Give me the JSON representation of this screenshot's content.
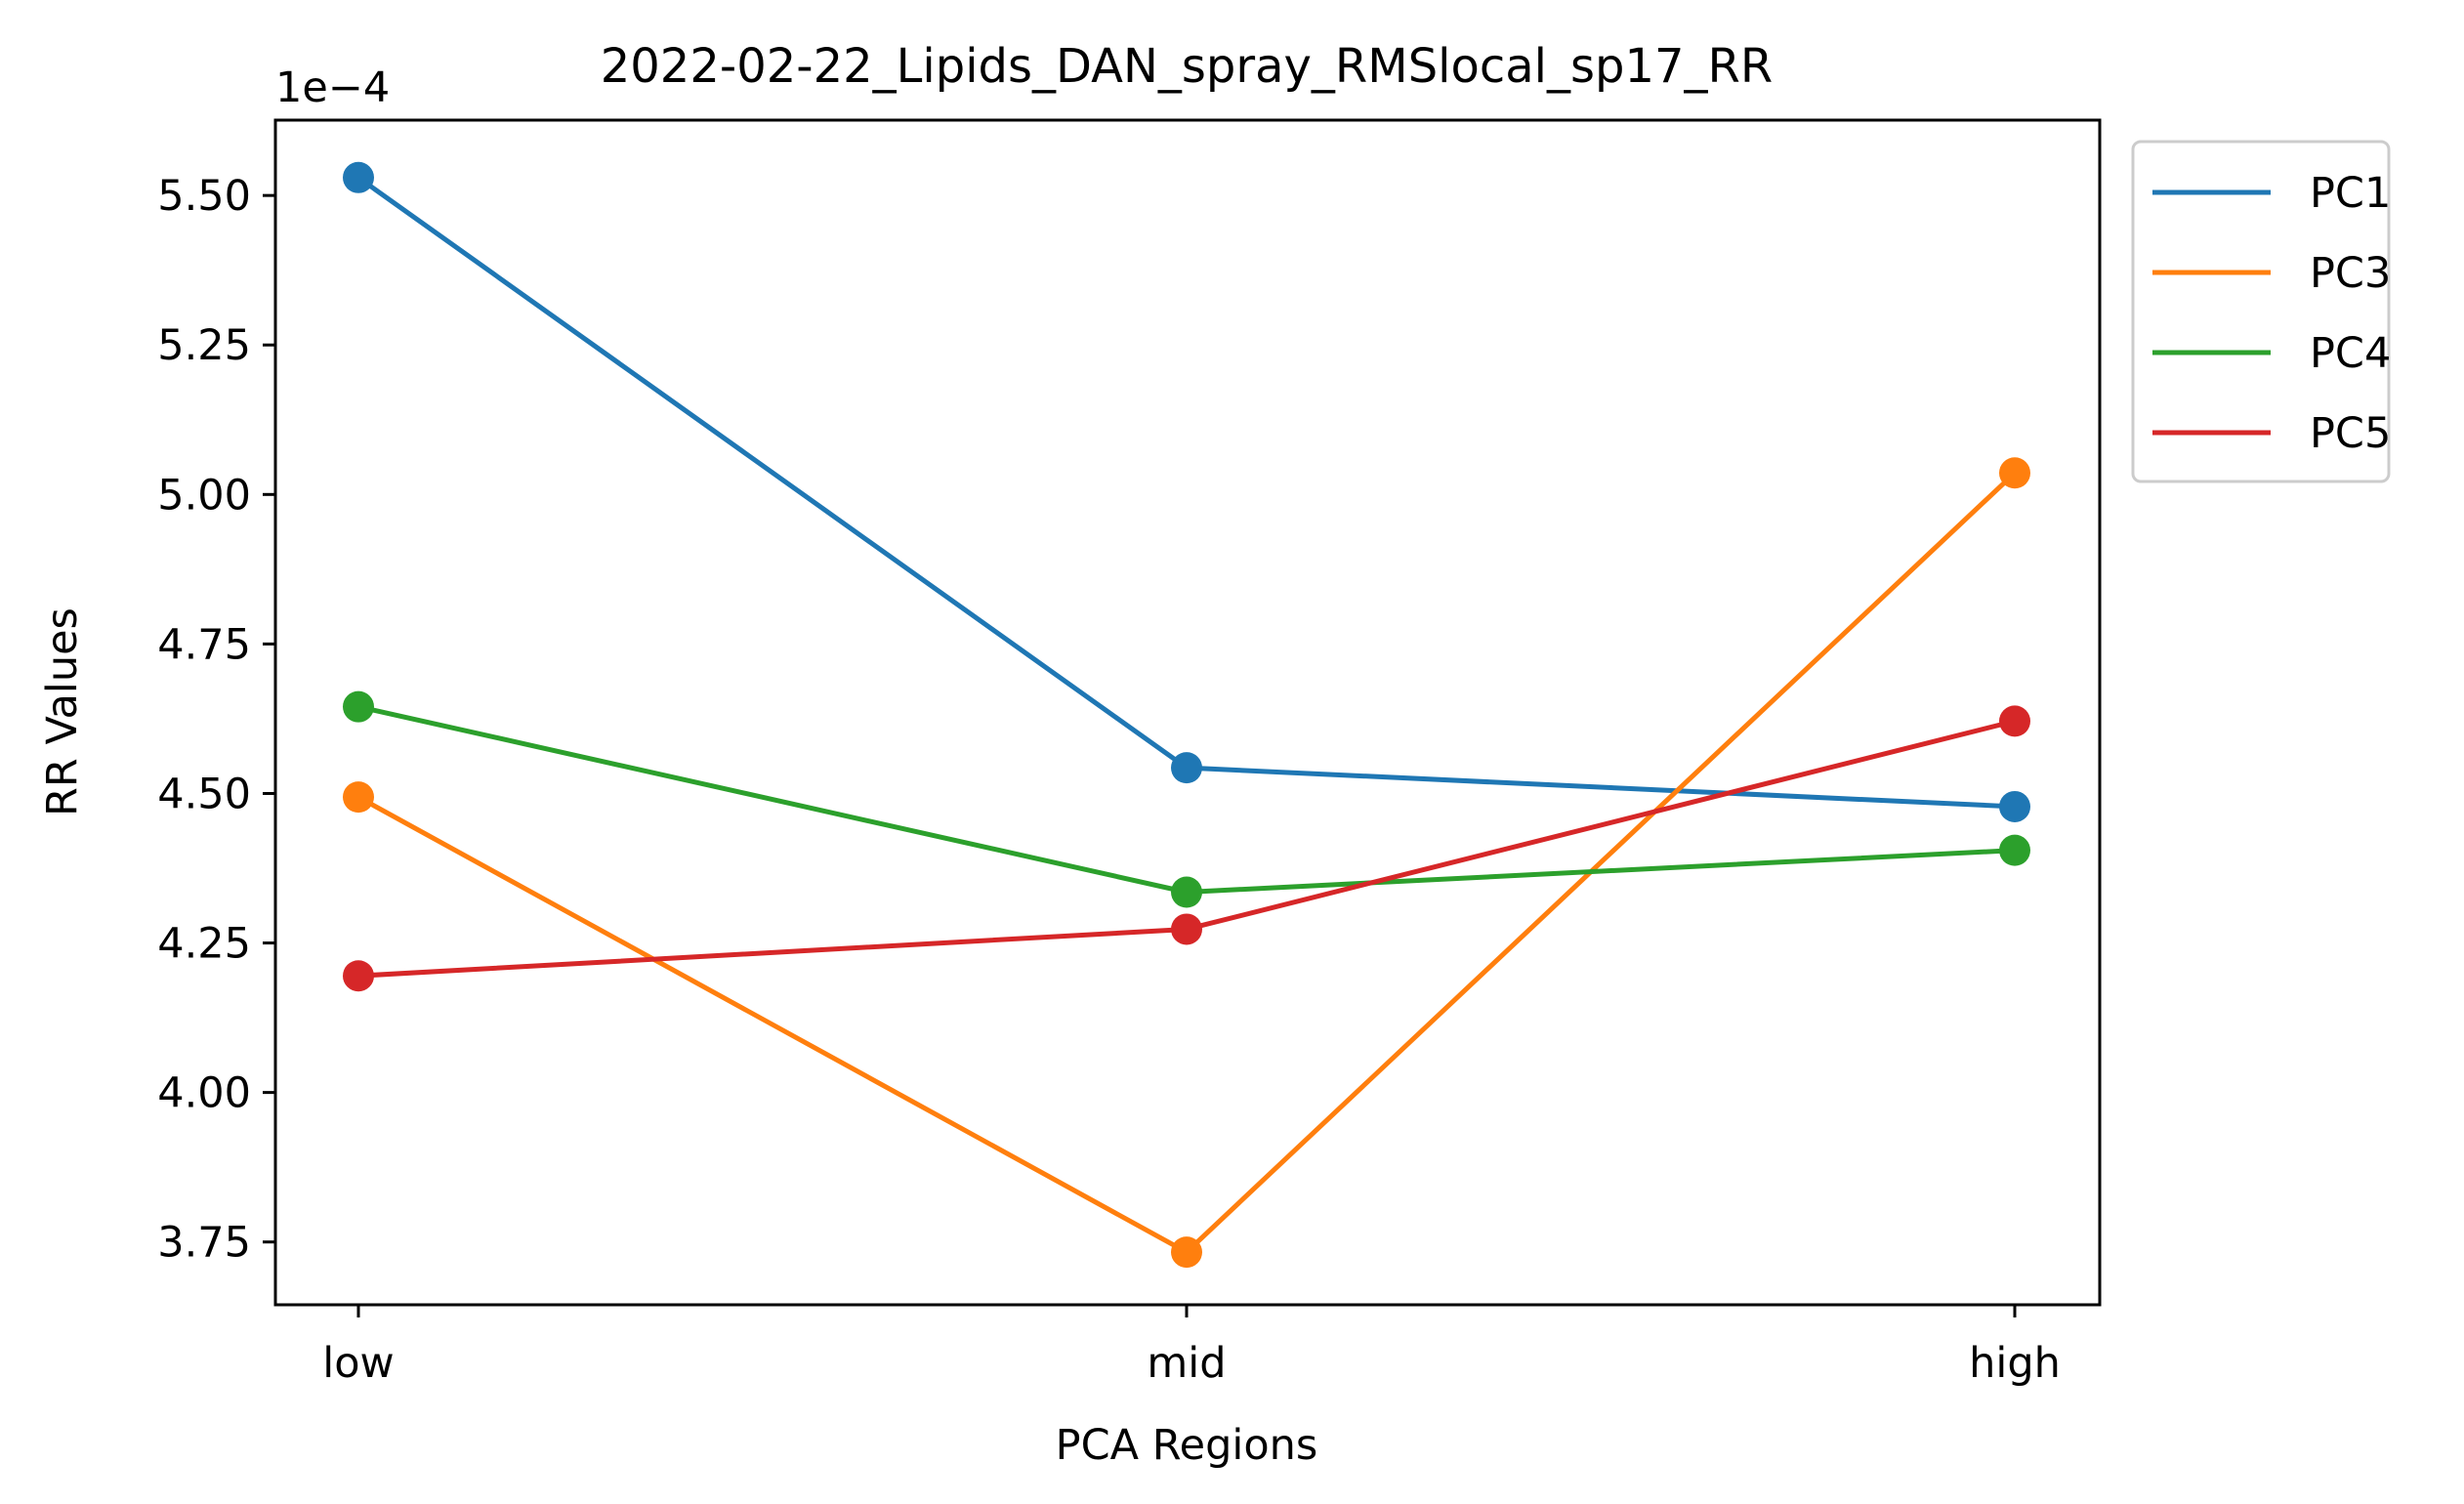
{
  "chart_data": {
    "type": "line",
    "title": "2022-02-22_Lipids_DAN_spray_RMSlocal_sp17_RR",
    "xlabel": "PCA Regions",
    "ylabel": "RR Values",
    "y_offset_label": "1e−4",
    "categories": [
      "low",
      "mid",
      "high"
    ],
    "ylim": [
      0.0003645,
      0.0005626
    ],
    "yticks": [
      0.000375,
      0.0004,
      0.000425,
      0.00045,
      0.000475,
      0.0005,
      0.000525,
      0.00055
    ],
    "ytick_labels": [
      "3.75",
      "4.00",
      "4.25",
      "4.50",
      "4.75",
      "5.00",
      "5.25",
      "5.50"
    ],
    "grid": false,
    "legend_position": "outside upper right",
    "series": [
      {
        "name": "PC1",
        "color": "#1f77b4",
        "values": [
          0.000553,
          0.0004543,
          0.0004478
        ]
      },
      {
        "name": "PC3",
        "color": "#ff7f0e",
        "values": [
          0.0004494,
          0.0003733,
          0.0005036
        ]
      },
      {
        "name": "PC4",
        "color": "#2ca02c",
        "values": [
          0.0004645,
          0.0004335,
          0.0004405
        ]
      },
      {
        "name": "PC5",
        "color": "#d62728",
        "values": [
          0.0004195,
          0.0004273,
          0.0004621
        ]
      }
    ]
  }
}
